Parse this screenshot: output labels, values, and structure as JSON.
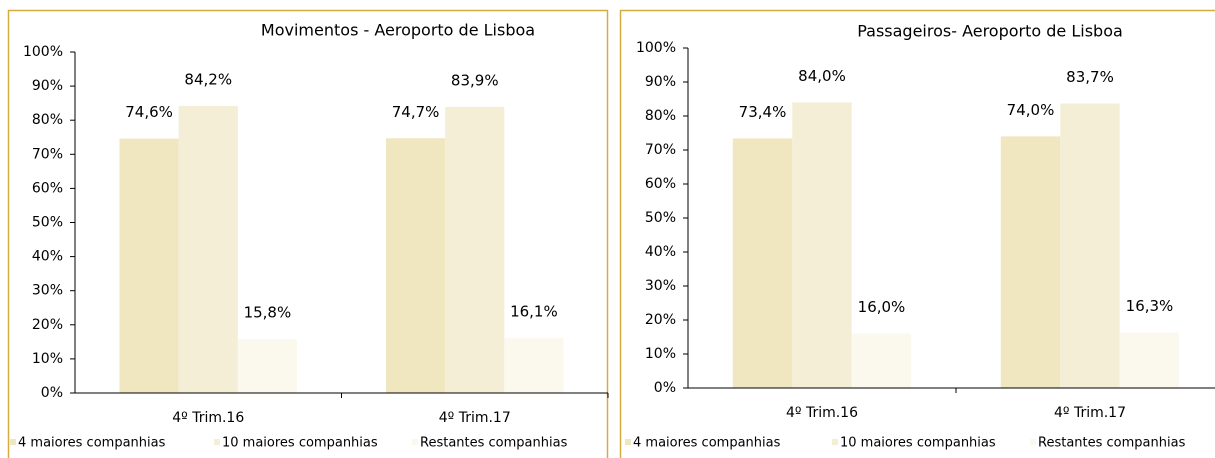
{
  "chart_data": [
    {
      "type": "bar",
      "title": "Movimentos - Aeroporto de Lisboa",
      "categories": [
        "4º Trim.16",
        "4º Trim.17"
      ],
      "series": [
        {
          "name": "4 maiores companhias",
          "color": "#f0e6c0",
          "values": [
            74.6,
            74.7
          ],
          "value_labels": [
            "74,6%",
            "74,7%"
          ]
        },
        {
          "name": "10 maiores companhias",
          "color": "#f5eed6",
          "values": [
            84.2,
            83.9
          ],
          "value_labels": [
            "84,2%",
            "83,9%"
          ]
        },
        {
          "name": "Restantes companhias",
          "color": "#fbf8ee",
          "values": [
            15.8,
            16.1
          ],
          "value_labels": [
            "15,8%",
            "16,1%"
          ]
        }
      ],
      "ylim": [
        0,
        100
      ],
      "yticks": [
        {
          "value": 0,
          "label": "0%"
        },
        {
          "value": 10,
          "label": "10%"
        },
        {
          "value": 20,
          "label": "20%"
        },
        {
          "value": 30,
          "label": "30%"
        },
        {
          "value": 40,
          "label": "40%"
        },
        {
          "value": 50,
          "label": "50%"
        },
        {
          "value": 60,
          "label": "60%"
        },
        {
          "value": 70,
          "label": "70%"
        },
        {
          "value": 80,
          "label": "80%"
        },
        {
          "value": 90,
          "label": "90%"
        },
        {
          "value": 100,
          "label": "100%"
        }
      ],
      "legend": "bottom"
    },
    {
      "type": "bar",
      "title": "Passageiros- Aeroporto de Lisboa",
      "categories": [
        "4º Trim.16",
        "4º Trim.17"
      ],
      "series": [
        {
          "name": "4 maiores companhias",
          "color": "#f0e6c0",
          "values": [
            73.4,
            74.0
          ],
          "value_labels": [
            "73,4%",
            "74,0%"
          ]
        },
        {
          "name": "10 maiores companhias",
          "color": "#f5eed6",
          "values": [
            84.0,
            83.7
          ],
          "value_labels": [
            "84,0%",
            "83,7%"
          ]
        },
        {
          "name": "Restantes companhias",
          "color": "#fbf8ee",
          "values": [
            16.0,
            16.3
          ],
          "value_labels": [
            "16,0%",
            "16,3%"
          ]
        }
      ],
      "ylim": [
        0,
        100
      ],
      "yticks": [
        {
          "value": 0,
          "label": "0%"
        },
        {
          "value": 10,
          "label": "10%"
        },
        {
          "value": 20,
          "label": "20%"
        },
        {
          "value": 30,
          "label": "30%"
        },
        {
          "value": 40,
          "label": "40%"
        },
        {
          "value": 50,
          "label": "50%"
        },
        {
          "value": 60,
          "label": "60%"
        },
        {
          "value": 70,
          "label": "70%"
        },
        {
          "value": 80,
          "label": "80%"
        },
        {
          "value": 90,
          "label": "90%"
        },
        {
          "value": 100,
          "label": "100%"
        }
      ],
      "legend": "bottom"
    }
  ]
}
